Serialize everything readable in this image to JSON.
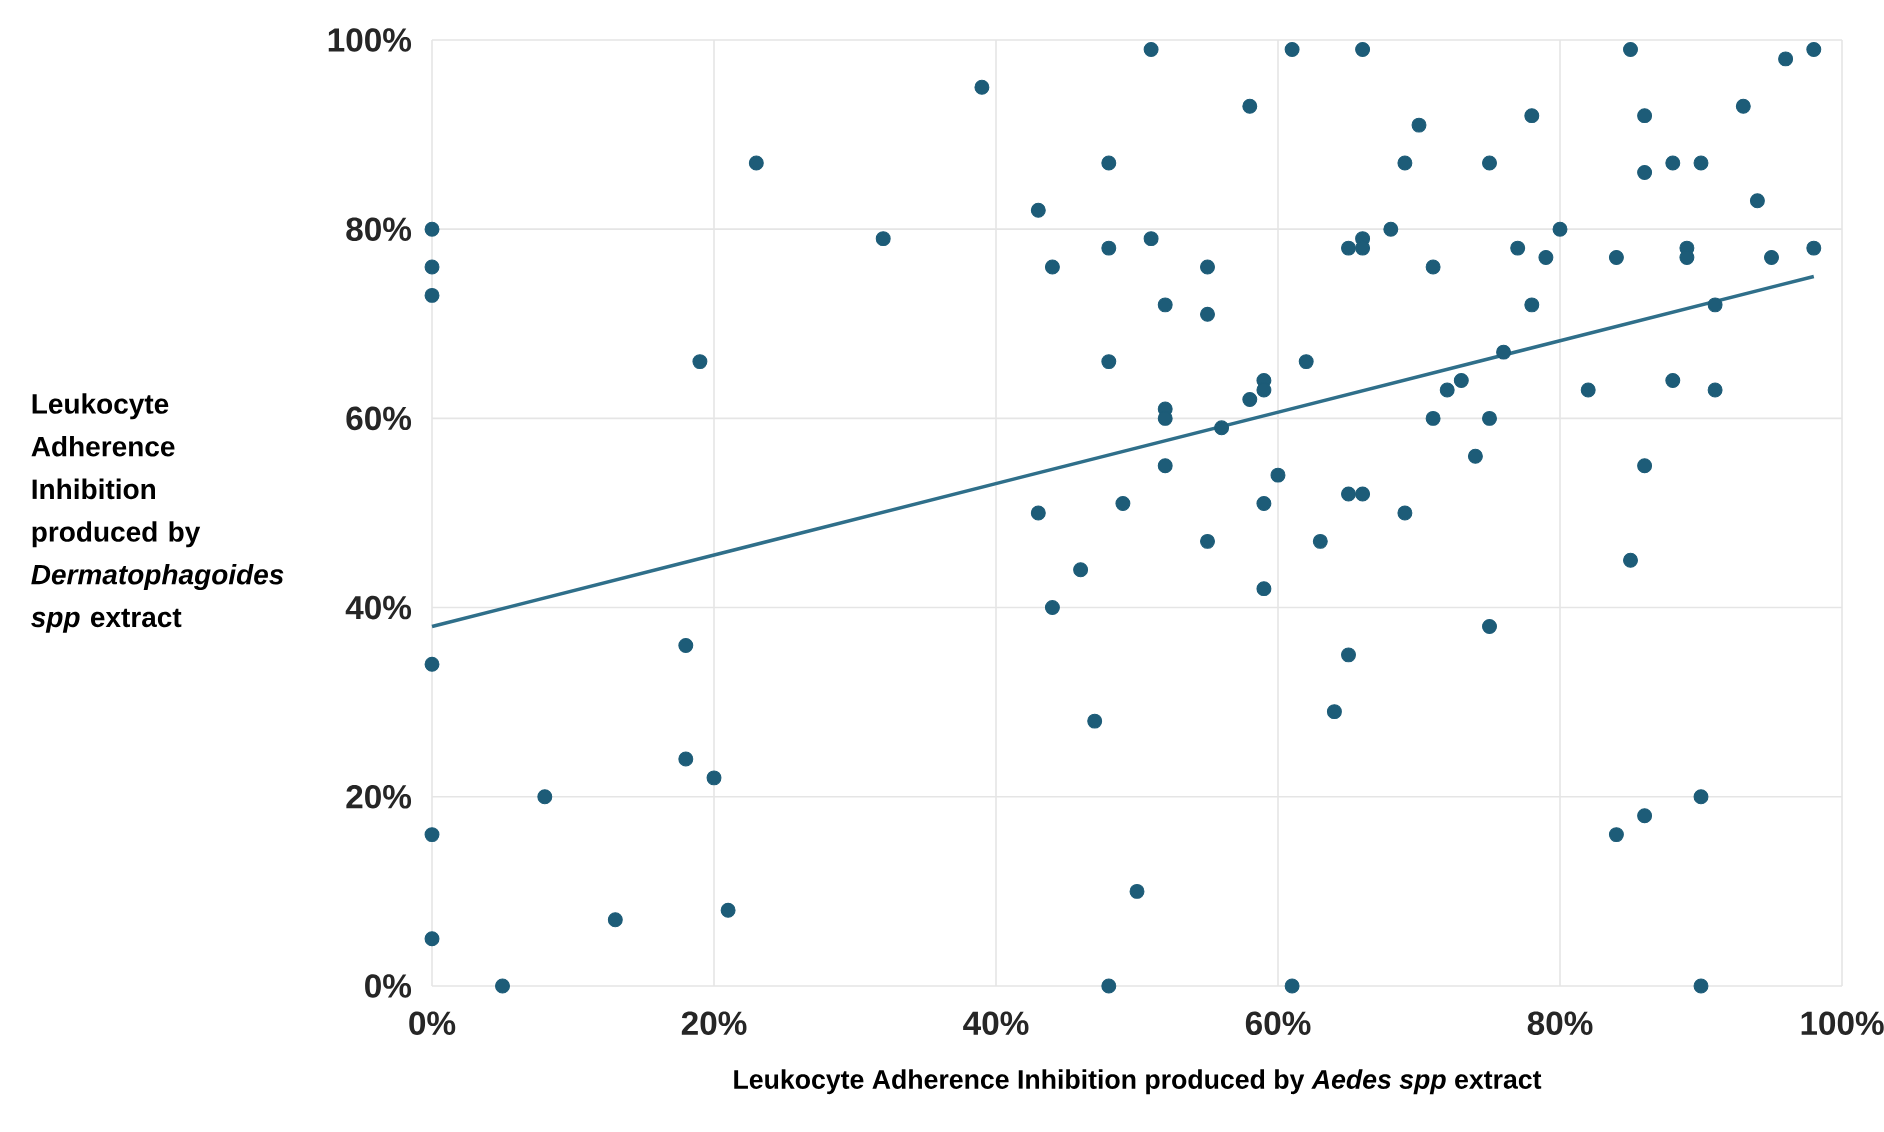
{
  "chart_data": {
    "type": "scatter",
    "xlabel": "Leukocyte Adherence Inhibition produced by *Aedes spp* extract",
    "ylabel": "Leukocyte Adherence Inhibition produced by *Dermatophagoides spp* extract",
    "xlim": [
      0,
      100
    ],
    "ylim": [
      0,
      100
    ],
    "xticks": [
      {
        "value": 0,
        "label": "0%"
      },
      {
        "value": 20,
        "label": "20%"
      },
      {
        "value": 40,
        "label": "40%"
      },
      {
        "value": 60,
        "label": "60%"
      },
      {
        "value": 80,
        "label": "80%"
      },
      {
        "value": 100,
        "label": "100%"
      }
    ],
    "yticks": [
      {
        "value": 0,
        "label": "0%"
      },
      {
        "value": 20,
        "label": "20%"
      },
      {
        "value": 40,
        "label": "40%"
      },
      {
        "value": 60,
        "label": "60%"
      },
      {
        "value": 80,
        "label": "80%"
      },
      {
        "value": 100,
        "label": "100%"
      }
    ],
    "grid": true,
    "marker": "circle",
    "series": [
      {
        "color": "#1d5c78",
        "x": [
          0,
          0,
          0,
          0,
          0,
          0,
          5,
          8,
          13,
          18,
          18,
          19,
          20,
          21,
          23,
          32,
          39,
          43,
          43,
          44,
          44,
          46,
          47,
          48,
          48,
          48,
          48,
          49,
          50,
          51,
          51,
          52,
          52,
          52,
          52,
          55,
          55,
          55,
          56,
          58,
          58,
          59,
          59,
          59,
          59,
          60,
          61,
          61,
          62,
          63,
          64,
          65,
          65,
          65,
          66,
          66,
          66,
          66,
          68,
          69,
          69,
          70,
          71,
          71,
          72,
          73,
          74,
          75,
          75,
          75,
          76,
          77,
          78,
          78,
          79,
          80,
          82,
          84,
          84,
          85,
          85,
          86,
          86,
          86,
          86,
          88,
          88,
          89,
          89,
          90,
          90,
          90,
          91,
          91,
          93,
          94,
          95,
          96,
          98,
          98
        ],
        "values": [
          80,
          76,
          73,
          34,
          16,
          5,
          0,
          20,
          7,
          36,
          24,
          66,
          22,
          8,
          87,
          79,
          95,
          82,
          50,
          76,
          40,
          44,
          28,
          87,
          78,
          66,
          0,
          51,
          10,
          99,
          79,
          72,
          61,
          60,
          55,
          76,
          71,
          47,
          59,
          93,
          62,
          64,
          63,
          51,
          42,
          54,
          99,
          0,
          66,
          47,
          29,
          78,
          52,
          35,
          99,
          79,
          78,
          52,
          80,
          87,
          50,
          91,
          76,
          60,
          63,
          64,
          56,
          87,
          60,
          38,
          67,
          78,
          92,
          72,
          77,
          80,
          63,
          77,
          16,
          99,
          45,
          92,
          86,
          55,
          18,
          87,
          64,
          78,
          77,
          87,
          20,
          0,
          72,
          63,
          93,
          83,
          77,
          98,
          99,
          78
        ]
      },
      {
        "type": "line",
        "color": "#2f6f8a",
        "marker": "none",
        "x": [
          0,
          98
        ],
        "values": [
          38,
          75
        ]
      }
    ]
  }
}
